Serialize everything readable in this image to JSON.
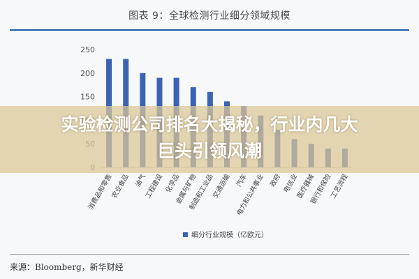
{
  "chart_title": "图表 9：全球检测行业细分领域规模",
  "headline_line1": "实验检测公司排名大揭秘，行业内几大",
  "headline_line2": "巨头引领风潮",
  "source": "来源：Bloomberg，新华财经",
  "colors": {
    "bar": "#3a62b5",
    "rule": "#1f5fa8",
    "banner": "#dcc896"
  },
  "chart_data": {
    "type": "bar",
    "title": "图表 9：全球检测行业细分领域规模",
    "categories": [
      "消费品和零售",
      "农业食品",
      "油气",
      "工程建设",
      "化学品",
      "金属与矿物",
      "制造和工业品",
      "交通运输",
      "汽车",
      "电力和公共事业",
      "政府",
      "电信业",
      "医疗器械",
      "银行和保险",
      "工艺流程"
    ],
    "series": [
      {
        "name": "细分行业规模（亿欧元）",
        "values": [
          230,
          230,
          200,
          190,
          190,
          170,
          160,
          140,
          130,
          110,
          80,
          60,
          50,
          40,
          40
        ]
      }
    ],
    "ylim": [
      0,
      250
    ],
    "yticks": [
      0,
      50,
      100,
      150,
      200,
      250
    ],
    "grid": false,
    "legend": "bottom",
    "xlabel": "",
    "ylabel": ""
  }
}
